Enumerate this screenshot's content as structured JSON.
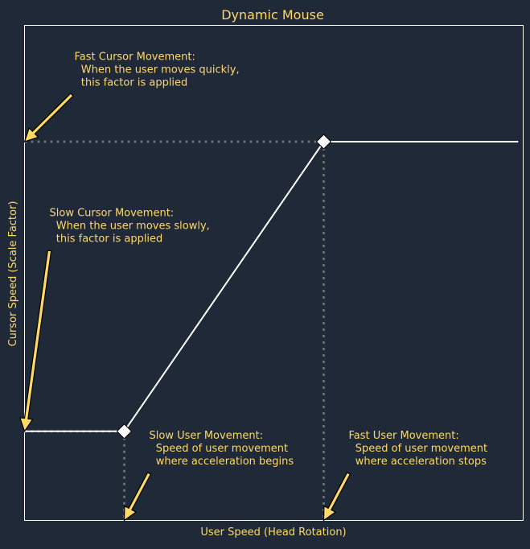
{
  "colors": {
    "background": "#1f2937",
    "text": "#ffd966",
    "axes": "#ffffff",
    "line": "#ffffff",
    "guide": "#6b6b6b",
    "arrow_fill": "#ffd966",
    "arrow_stroke": "#000000",
    "marker_fill": "#ffffff",
    "marker_stroke": "#000000"
  },
  "chart_data": {
    "type": "line",
    "title": "Dynamic Mouse",
    "xlabel": "User Speed (Head Rotation)",
    "ylabel": "Cursor Speed (Scale Factor)",
    "xlim": [
      0,
      1
    ],
    "ylim": [
      0,
      1
    ],
    "grid": false,
    "legend": false,
    "series": [
      {
        "values": [
          {
            "x": 0.0,
            "y": 0.18
          },
          {
            "x": 0.2,
            "y": 0.18
          },
          {
            "x": 0.6,
            "y": 0.765
          },
          {
            "x": 0.99,
            "y": 0.765
          }
        ]
      }
    ],
    "markers": [
      {
        "x": 0.2,
        "y": 0.18
      },
      {
        "x": 0.6,
        "y": 0.765
      }
    ],
    "annotations": [
      {
        "id": "fast-cursor",
        "lines": [
          "Fast Cursor Movement:",
          "  When the user moves quickly,",
          "  this factor is applied"
        ],
        "text_xy": [
          0.1,
          0.93
        ],
        "arrow_tail": [
          0.095,
          0.86
        ],
        "arrow_head": [
          0.0,
          0.765
        ]
      },
      {
        "id": "slow-cursor",
        "lines": [
          "Slow Cursor Movement:",
          "  When the user moves slowly,",
          "  this factor is applied"
        ],
        "text_xy": [
          0.05,
          0.615
        ],
        "arrow_tail": [
          0.05,
          0.545
        ],
        "arrow_head": [
          0.0,
          0.18
        ]
      },
      {
        "id": "slow-user",
        "lines": [
          "Slow User Movement:",
          "  Speed of user movement",
          "  where acceleration begins"
        ],
        "text_xy": [
          0.25,
          0.165
        ],
        "arrow_tail": [
          0.25,
          0.095
        ],
        "arrow_head": [
          0.2,
          0.0
        ]
      },
      {
        "id": "fast-user",
        "lines": [
          "Fast User Movement:",
          "  Speed of user movement",
          "  where acceleration stops"
        ],
        "text_xy": [
          0.65,
          0.165
        ],
        "arrow_tail": [
          0.65,
          0.095
        ],
        "arrow_head": [
          0.6,
          0.0
        ]
      }
    ]
  }
}
